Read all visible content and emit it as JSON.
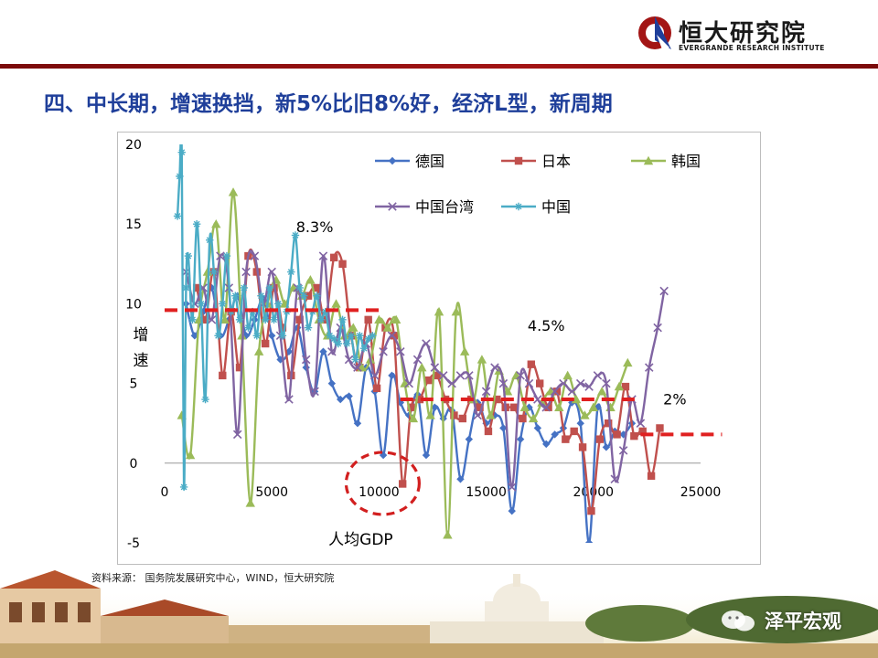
{
  "brand": {
    "name_cn": "恒大研究院",
    "name_en": "EVERGRANDE RESEARCH INSTITUTE"
  },
  "headline": "四、中长期，增速换挡，新5%比旧8%好，经济L型，新周期",
  "source": "资料来源：   国务院发展研究中心，WIND，恒大研究院",
  "watermark": "泽平宏观",
  "colors": {
    "brand_red": "#a31515",
    "headline_blue": "#1f3f9a",
    "germany": "#4572c4",
    "japan": "#c0504d",
    "korea": "#9bbb59",
    "taiwan": "#8064a2",
    "china": "#4bacc6",
    "reference": "#e02020"
  },
  "chart_data": {
    "type": "line",
    "xlabel": "人均GDP",
    "ylabel": "增速",
    "xlim": [
      0,
      25000
    ],
    "ylim": [
      -5,
      20
    ],
    "x_ticks": [
      0,
      5000,
      10000,
      15000,
      20000,
      25000
    ],
    "y_ticks": [
      -5,
      0,
      5,
      10,
      15,
      20
    ],
    "legend_position": "top",
    "series": [
      {
        "name": "德国",
        "color": "#4572c4",
        "marker": "diamond",
        "points": [
          [
            1000,
            10
          ],
          [
            1400,
            8
          ],
          [
            1800,
            9.5
          ],
          [
            2200,
            11
          ],
          [
            2600,
            8
          ],
          [
            3000,
            9
          ],
          [
            3400,
            10.5
          ],
          [
            3800,
            8
          ],
          [
            4200,
            9
          ],
          [
            4600,
            10.3
          ],
          [
            5000,
            8
          ],
          [
            5400,
            6.5
          ],
          [
            5800,
            7
          ],
          [
            6200,
            8.5
          ],
          [
            6600,
            6
          ],
          [
            7000,
            4.5
          ],
          [
            7400,
            7
          ],
          [
            7800,
            5
          ],
          [
            8200,
            4
          ],
          [
            8600,
            4.2
          ],
          [
            9000,
            2.5
          ],
          [
            9400,
            6
          ],
          [
            9800,
            4.5
          ],
          [
            10200,
            0.5
          ],
          [
            10600,
            5.5
          ],
          [
            11000,
            3.8
          ],
          [
            11400,
            3
          ],
          [
            11800,
            4.3
          ],
          [
            12200,
            0.5
          ],
          [
            12600,
            3.5
          ],
          [
            13000,
            2.8
          ],
          [
            13400,
            3.3
          ],
          [
            13800,
            -1
          ],
          [
            14200,
            1.5
          ],
          [
            14600,
            3.8
          ],
          [
            15000,
            2.5
          ],
          [
            15400,
            3
          ],
          [
            15800,
            2.2
          ],
          [
            16200,
            -3
          ],
          [
            16600,
            1.5
          ],
          [
            17000,
            3.5
          ],
          [
            17400,
            2.2
          ],
          [
            17800,
            1.2
          ],
          [
            18200,
            1.8
          ],
          [
            18600,
            2.2
          ],
          [
            19000,
            3.8
          ],
          [
            19400,
            2.5
          ],
          [
            19800,
            -5
          ],
          [
            20200,
            3.5
          ],
          [
            20600,
            1
          ],
          [
            21000,
            2
          ],
          [
            21400,
            1.8
          ],
          [
            21800,
            2.5
          ]
        ]
      },
      {
        "name": "日本",
        "color": "#c0504d",
        "marker": "square",
        "points": [
          [
            1500,
            11
          ],
          [
            1900,
            9
          ],
          [
            2300,
            12
          ],
          [
            2700,
            5.5
          ],
          [
            3100,
            9.5
          ],
          [
            3500,
            6
          ],
          [
            3900,
            13
          ],
          [
            4300,
            12
          ],
          [
            4700,
            7.5
          ],
          [
            5100,
            11
          ],
          [
            5500,
            8.5
          ],
          [
            5900,
            5.5
          ],
          [
            6300,
            9
          ],
          [
            6700,
            10.5
          ],
          [
            7100,
            11
          ],
          [
            7500,
            9
          ],
          [
            7900,
            12.9
          ],
          [
            8300,
            12.5
          ],
          [
            8700,
            8
          ],
          [
            9100,
            6
          ],
          [
            9500,
            9
          ],
          [
            9900,
            4.7
          ],
          [
            10300,
            8.5
          ],
          [
            10700,
            8
          ],
          [
            11100,
            -1.3
          ],
          [
            11500,
            3.5
          ],
          [
            11900,
            4
          ],
          [
            12300,
            5.2
          ],
          [
            12700,
            5.5
          ],
          [
            13100,
            4
          ],
          [
            13500,
            3
          ],
          [
            13900,
            2.8
          ],
          [
            14300,
            4
          ],
          [
            14700,
            3.5
          ],
          [
            15100,
            2
          ],
          [
            15500,
            4
          ],
          [
            15900,
            3.5
          ],
          [
            16300,
            3.5
          ],
          [
            16700,
            2.8
          ],
          [
            17100,
            6.2
          ],
          [
            17500,
            5
          ],
          [
            17900,
            3.5
          ],
          [
            18300,
            4.5
          ],
          [
            18700,
            1.5
          ],
          [
            19100,
            2
          ],
          [
            19500,
            1
          ],
          [
            19900,
            -3
          ],
          [
            20300,
            1.5
          ],
          [
            20700,
            2.5
          ],
          [
            21100,
            1.8
          ],
          [
            21500,
            4.8
          ],
          [
            21900,
            1.7
          ],
          [
            22300,
            2
          ],
          [
            22700,
            -0.8
          ],
          [
            23100,
            2.2
          ]
        ]
      },
      {
        "name": "韩国",
        "color": "#9bbb59",
        "marker": "triangle",
        "points": [
          [
            800,
            3
          ],
          [
            1200,
            0.5
          ],
          [
            1600,
            9
          ],
          [
            2000,
            12
          ],
          [
            2400,
            15
          ],
          [
            2800,
            9
          ],
          [
            3200,
            17
          ],
          [
            3600,
            8
          ],
          [
            4000,
            -2.5
          ],
          [
            4400,
            7
          ],
          [
            4800,
            10
          ],
          [
            5200,
            11.5
          ],
          [
            5600,
            10
          ],
          [
            6000,
            11
          ],
          [
            6400,
            10.5
          ],
          [
            6800,
            11.5
          ],
          [
            7200,
            9
          ],
          [
            7600,
            8
          ],
          [
            8000,
            10
          ],
          [
            8400,
            8
          ],
          [
            8800,
            8.5
          ],
          [
            9200,
            6
          ],
          [
            9600,
            6.5
          ],
          [
            10000,
            9
          ],
          [
            10400,
            8.5
          ],
          [
            10800,
            9
          ],
          [
            11200,
            5
          ],
          [
            11600,
            2.8
          ],
          [
            12000,
            6
          ],
          [
            12400,
            3
          ],
          [
            12800,
            9.5
          ],
          [
            13200,
            -4.5
          ],
          [
            13600,
            9.5
          ],
          [
            14000,
            7
          ],
          [
            14400,
            4
          ],
          [
            14800,
            6.5
          ],
          [
            15200,
            3
          ],
          [
            15600,
            5.8
          ],
          [
            16000,
            4.5
          ],
          [
            16400,
            5.5
          ],
          [
            16800,
            3.5
          ],
          [
            17200,
            2.8
          ],
          [
            17600,
            3.8
          ],
          [
            18000,
            4.5
          ],
          [
            18400,
            3.5
          ],
          [
            18800,
            5.5
          ],
          [
            19200,
            4
          ],
          [
            19600,
            3
          ],
          [
            20000,
            3.5
          ],
          [
            20400,
            4.5
          ],
          [
            20800,
            3.5
          ],
          [
            21200,
            4.8
          ],
          [
            21600,
            6.3
          ]
        ]
      },
      {
        "name": "中国台湾",
        "color": "#8064a2",
        "marker": "x",
        "points": [
          [
            1000,
            12
          ],
          [
            1400,
            10
          ],
          [
            1800,
            11
          ],
          [
            2200,
            9
          ],
          [
            2600,
            13
          ],
          [
            3000,
            11
          ],
          [
            3400,
            1.8
          ],
          [
            3800,
            12
          ],
          [
            4200,
            13
          ],
          [
            4600,
            10
          ],
          [
            5000,
            12
          ],
          [
            5400,
            8
          ],
          [
            5800,
            4
          ],
          [
            6200,
            11
          ],
          [
            6600,
            6.5
          ],
          [
            7000,
            4.5
          ],
          [
            7400,
            13
          ],
          [
            7800,
            7
          ],
          [
            8200,
            8.5
          ],
          [
            8600,
            6.5
          ],
          [
            9000,
            6
          ],
          [
            9400,
            7.5
          ],
          [
            9800,
            5.5
          ],
          [
            10200,
            7
          ],
          [
            10600,
            8
          ],
          [
            11000,
            7
          ],
          [
            11400,
            5
          ],
          [
            11800,
            6.5
          ],
          [
            12200,
            7.5
          ],
          [
            12600,
            6
          ],
          [
            13000,
            5.5
          ],
          [
            13400,
            5
          ],
          [
            13800,
            5.5
          ],
          [
            14200,
            5.5
          ],
          [
            14600,
            3
          ],
          [
            15000,
            4.5
          ],
          [
            15400,
            6
          ],
          [
            15800,
            5
          ],
          [
            16200,
            -1.5
          ],
          [
            16600,
            5.5
          ],
          [
            17000,
            5
          ],
          [
            17400,
            4
          ],
          [
            17800,
            3.5
          ],
          [
            18200,
            4.5
          ],
          [
            18600,
            5
          ],
          [
            19000,
            4.5
          ],
          [
            19400,
            5
          ],
          [
            19800,
            4.8
          ],
          [
            20200,
            5.5
          ],
          [
            20600,
            5
          ],
          [
            21000,
            -1
          ],
          [
            21400,
            0.8
          ],
          [
            21800,
            4
          ],
          [
            22200,
            2.5
          ],
          [
            22600,
            6
          ],
          [
            23000,
            8.5
          ],
          [
            23300,
            10.8
          ]
        ]
      },
      {
        "name": "中国",
        "color": "#4bacc6",
        "marker": "asterisk",
        "points": [
          [
            600,
            15.5
          ],
          [
            700,
            18
          ],
          [
            800,
            19.5
          ],
          [
            900,
            -1.5
          ],
          [
            1000,
            11
          ],
          [
            1100,
            13
          ],
          [
            1300,
            9
          ],
          [
            1500,
            15
          ],
          [
            1700,
            10
          ],
          [
            1900,
            4
          ],
          [
            2100,
            14
          ],
          [
            2300,
            12
          ],
          [
            2500,
            8
          ],
          [
            2700,
            10
          ],
          [
            2900,
            13
          ],
          [
            3100,
            9.5
          ],
          [
            3300,
            10.5
          ],
          [
            3500,
            9
          ],
          [
            3700,
            11
          ],
          [
            3900,
            8.5
          ],
          [
            4100,
            9.5
          ],
          [
            4300,
            8
          ],
          [
            4500,
            10.5
          ],
          [
            4700,
            9
          ],
          [
            4900,
            11
          ],
          [
            5100,
            9
          ],
          [
            5300,
            10
          ],
          [
            5500,
            8
          ],
          [
            5700,
            9.5
          ],
          [
            5900,
            12
          ],
          [
            6100,
            14.3
          ],
          [
            6300,
            11
          ],
          [
            6500,
            10.5
          ],
          [
            6700,
            8.5
          ],
          [
            6900,
            9.5
          ],
          [
            7100,
            10.5
          ],
          [
            7300,
            9
          ],
          [
            7500,
            9.5
          ],
          [
            7700,
            8
          ],
          [
            7900,
            7.8
          ],
          [
            8100,
            7.5
          ],
          [
            8300,
            9
          ],
          [
            8500,
            7.5
          ],
          [
            8700,
            8
          ],
          [
            8900,
            6.5
          ],
          [
            9100,
            8
          ],
          [
            9300,
            7.2
          ],
          [
            9500,
            7.8
          ],
          [
            9700,
            8
          ]
        ]
      }
    ],
    "reference_lines": [
      {
        "x": [
          0,
          10000
        ],
        "y": 9.6
      },
      {
        "x": [
          11000,
          22000
        ],
        "y": 4.0
      },
      {
        "x": [
          22200,
          26000
        ],
        "y": 1.8
      }
    ],
    "annotations": [
      {
        "text": "8.3%",
        "x": 7000,
        "y": 14.5
      },
      {
        "text": "4.5%",
        "x": 17800,
        "y": 8.3
      },
      {
        "text": "2%",
        "x": 23800,
        "y": 3.7
      }
    ],
    "highlight_circle": {
      "x": 10000,
      "y": -1.5
    }
  }
}
